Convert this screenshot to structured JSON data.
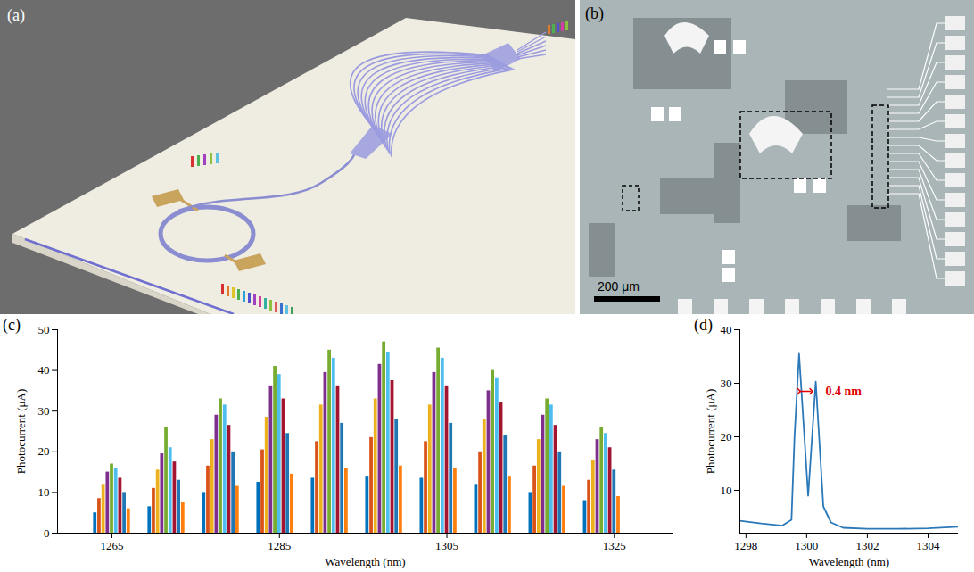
{
  "panels": {
    "a": {
      "label": "(a)"
    },
    "b": {
      "label": "(b)",
      "scale_bar": "200 μm"
    }
  },
  "chart_data": [
    {
      "panel": "(c)",
      "type": "bar",
      "x_label": "Wavelength (nm)",
      "y_label": "Photocurrent (μA)",
      "xlim": [
        1258.5,
        1332
      ],
      "xticks": [
        1265,
        1285,
        1305,
        1325
      ],
      "ylim": [
        0,
        50
      ],
      "yticks": [
        0,
        10,
        20,
        30,
        40,
        50
      ],
      "grid": false,
      "x": [
        1263,
        1263.5,
        1264,
        1264.5,
        1265,
        1265.5,
        1266,
        1266.5,
        1267,
        1269.5,
        1270,
        1270.5,
        1271,
        1271.5,
        1272,
        1272.5,
        1273,
        1273.5,
        1276,
        1276.5,
        1277,
        1277.5,
        1278,
        1278.5,
        1279,
        1279.5,
        1280,
        1282.5,
        1283,
        1283.5,
        1284,
        1284.5,
        1285,
        1285.5,
        1286,
        1286.5,
        1289,
        1289.5,
        1290,
        1290.5,
        1291,
        1291.5,
        1292,
        1292.5,
        1293,
        1295.5,
        1296,
        1296.5,
        1297,
        1297.5,
        1298,
        1298.5,
        1299,
        1299.5,
        1302,
        1302.5,
        1303,
        1303.5,
        1304,
        1304.5,
        1305,
        1305.5,
        1306,
        1308.5,
        1309,
        1309.5,
        1310,
        1310.5,
        1311,
        1311.5,
        1312,
        1312.5,
        1315,
        1315.5,
        1316,
        1316.5,
        1317,
        1317.5,
        1318,
        1318.5,
        1319,
        1321.5,
        1322,
        1322.5,
        1323,
        1323.5,
        1324,
        1324.5,
        1325,
        1325.5
      ],
      "values": [
        5,
        8.5,
        12,
        15,
        17,
        16,
        13.5,
        10,
        6,
        6.5,
        11,
        15.5,
        19.5,
        26,
        21,
        17.5,
        13,
        7.5,
        10,
        16.5,
        23,
        29,
        33,
        31.5,
        26.5,
        20,
        11.5,
        12.5,
        20.5,
        28.5,
        36,
        41,
        39,
        33,
        24.5,
        14.5,
        13.5,
        22.5,
        31.5,
        39.5,
        45,
        43,
        36,
        27,
        16,
        14,
        23.5,
        33,
        41.5,
        47,
        44.5,
        37.5,
        28,
        16.5,
        13.5,
        22.5,
        31.5,
        39.5,
        45.5,
        43,
        36,
        27,
        16,
        12,
        20,
        28,
        35,
        40,
        38,
        32,
        24,
        14,
        10,
        16.5,
        23,
        29,
        33,
        31.5,
        26.5,
        20,
        11.5,
        8,
        13,
        18,
        23,
        26,
        24.5,
        21,
        15.5,
        9
      ],
      "colors": [
        "#0072bd",
        "#d95319",
        "#edb120",
        "#7e2f8e",
        "#77ac30",
        "#4dbeee",
        "#a2142f",
        "#1f77b4",
        "#ff7f0e",
        "#0072bd",
        "#d95319",
        "#edb120",
        "#7e2f8e",
        "#77ac30",
        "#4dbeee",
        "#a2142f",
        "#1f77b4",
        "#ff7f0e",
        "#0072bd",
        "#d95319",
        "#edb120",
        "#7e2f8e",
        "#77ac30",
        "#4dbeee",
        "#a2142f",
        "#1f77b4",
        "#ff7f0e",
        "#0072bd",
        "#d95319",
        "#edb120",
        "#7e2f8e",
        "#77ac30",
        "#4dbeee",
        "#a2142f",
        "#1f77b4",
        "#ff7f0e",
        "#0072bd",
        "#d95319",
        "#edb120",
        "#7e2f8e",
        "#77ac30",
        "#4dbeee",
        "#a2142f",
        "#1f77b4",
        "#ff7f0e",
        "#0072bd",
        "#d95319",
        "#edb120",
        "#7e2f8e",
        "#77ac30",
        "#4dbeee",
        "#a2142f",
        "#1f77b4",
        "#ff7f0e",
        "#0072bd",
        "#d95319",
        "#edb120",
        "#7e2f8e",
        "#77ac30",
        "#4dbeee",
        "#a2142f",
        "#1f77b4",
        "#ff7f0e",
        "#0072bd",
        "#d95319",
        "#edb120",
        "#7e2f8e",
        "#77ac30",
        "#4dbeee",
        "#a2142f",
        "#1f77b4",
        "#ff7f0e",
        "#0072bd",
        "#d95319",
        "#edb120",
        "#7e2f8e",
        "#77ac30",
        "#4dbeee",
        "#a2142f",
        "#1f77b4",
        "#ff7f0e",
        "#0072bd",
        "#d95319",
        "#edb120",
        "#7e2f8e",
        "#77ac30",
        "#4dbeee",
        "#a2142f",
        "#1f77b4",
        "#ff7f0e"
      ]
    },
    {
      "panel": "(d)",
      "type": "line",
      "x_label": "Wavelength (nm)",
      "y_label": "Photocurrent (μA)",
      "xlim": [
        1297.8,
        1305
      ],
      "xticks": [
        1298,
        1300,
        1302,
        1304
      ],
      "ylim": [
        2,
        40
      ],
      "yticks": [
        10,
        20,
        30,
        40
      ],
      "grid": false,
      "color": "#2a78b8",
      "x": [
        1297.8,
        1298.5,
        1299.2,
        1299.5,
        1299.6,
        1299.75,
        1300.05,
        1300.3,
        1300.55,
        1300.8,
        1301.2,
        1302,
        1303,
        1304,
        1305
      ],
      "values": [
        4.3,
        3.8,
        3.4,
        4.5,
        20,
        35.5,
        9,
        30.3,
        7,
        4,
        3,
        2.8,
        2.8,
        2.9,
        3.2
      ],
      "annotations": [
        {
          "text": "0.4 nm",
          "x1": 1299.75,
          "x2": 1300.15,
          "y": 28.5,
          "color": "#e00000"
        }
      ]
    }
  ]
}
